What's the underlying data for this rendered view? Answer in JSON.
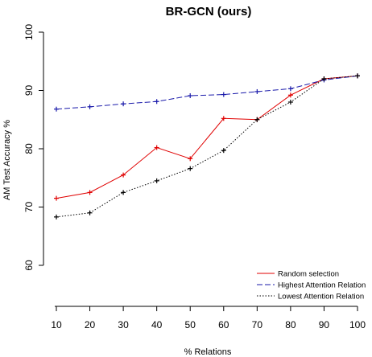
{
  "chart_data": {
    "type": "line",
    "title": "BR-GCN (ours)",
    "xlabel": "% Relations",
    "ylabel": "AM Test Accuracy %",
    "x": [
      10,
      20,
      30,
      40,
      50,
      60,
      70,
      80,
      90,
      100
    ],
    "xlim": [
      10,
      100
    ],
    "ylim": [
      55,
      100
    ],
    "yticks": [
      60,
      70,
      80,
      90,
      100
    ],
    "grid": false,
    "legend_position": "bottom-right",
    "series": [
      {
        "name": "Random selection",
        "color": "#e00000",
        "dash": "solid",
        "values": [
          71.5,
          72.5,
          75.5,
          80.2,
          78.3,
          85.2,
          85.0,
          89.2,
          92.0,
          92.5
        ]
      },
      {
        "name": "Highest Attention Relation",
        "color": "#1a1aaa",
        "dash": "dashed",
        "values": [
          86.8,
          87.2,
          87.7,
          88.1,
          89.1,
          89.3,
          89.8,
          90.3,
          91.8,
          92.5
        ]
      },
      {
        "name": "Lowest Attention Relation",
        "color": "#000000",
        "dash": "dotted",
        "values": [
          68.3,
          69.0,
          72.5,
          74.5,
          76.6,
          79.7,
          85.0,
          88.0,
          92.0,
          92.5
        ]
      }
    ]
  }
}
